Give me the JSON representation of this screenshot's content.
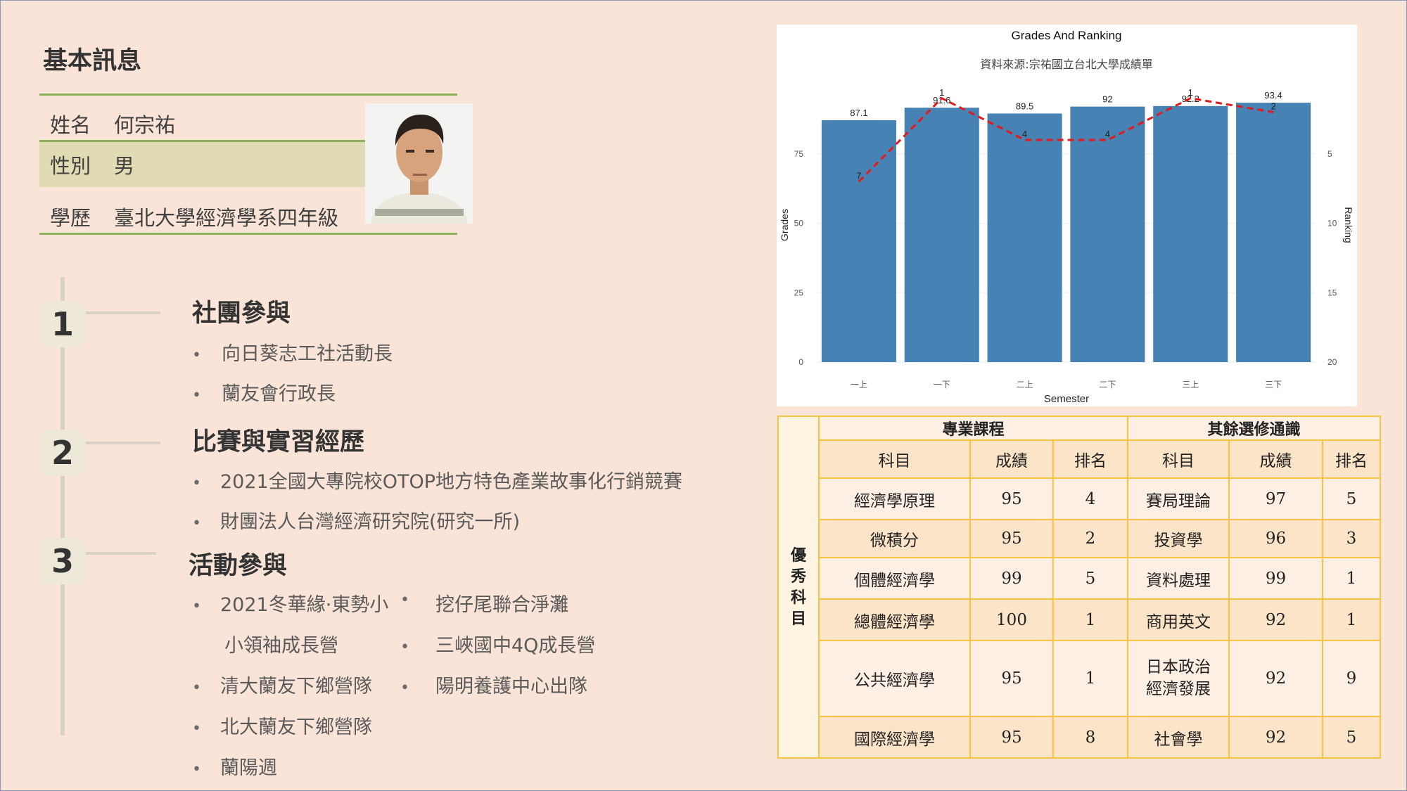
{
  "profile": {
    "section_title": "基本訊息",
    "rows": [
      {
        "label": "姓名",
        "value": "何宗祐"
      },
      {
        "label": "性別",
        "value": "男"
      },
      {
        "label": "學歷",
        "value": "臺北大學經濟學系四年級"
      }
    ]
  },
  "timeline": [
    {
      "number": "1",
      "title": "社團參與",
      "items": [
        "向日葵志工社活動長",
        "蘭友會行政長"
      ]
    },
    {
      "number": "2",
      "title": "比賽與實習經歷",
      "items": [
        "2021全國大專院校OTOP地方特色產業故事化行銷競賽",
        "財團法人台灣經濟研究院(研究一所)"
      ]
    },
    {
      "number": "3",
      "title": "活動參與",
      "left_items": [
        "2021冬華緣·東勢小",
        "小領袖成長營",
        "清大蘭友下鄉營隊",
        "北大蘭友下鄉營隊",
        "蘭陽週"
      ],
      "right_items": [
        "挖仔尾聯合淨灘",
        "三峽國中4Q成長營",
        "陽明養護中心出隊"
      ]
    }
  ],
  "chart_data": {
    "type": "bar",
    "title": "Grades And Ranking",
    "subtitle": "資料來源:宗祐國立台北大學成績單",
    "xlabel": "Semester",
    "ylabel": "Grades",
    "y2label": "Ranking",
    "categories": [
      "一上",
      "一下",
      "二上",
      "二下",
      "三上",
      "三下"
    ],
    "series": [
      {
        "values": [
          87.1,
          91.6,
          89.5,
          92,
          92.2,
          93.4
        ],
        "color": "#4682b4",
        "type": "bar"
      },
      {
        "values": [
          7,
          1,
          4,
          4,
          1,
          2
        ],
        "color": "#e31a1c",
        "type": "line",
        "axis": "right"
      }
    ],
    "ylim": [
      0,
      100
    ],
    "yticks": [
      0,
      25,
      50,
      75
    ],
    "y2lim": [
      20,
      0
    ],
    "y2ticks": [
      5,
      10,
      15,
      20
    ],
    "grid": true
  },
  "grades_table": {
    "side_label": "優秀科目",
    "group1": "專業課程",
    "group2": "其餘選修通識",
    "columns": [
      "科目",
      "成績",
      "排名",
      "科目",
      "成績",
      "排名"
    ],
    "rows": [
      [
        "經濟學原理",
        "95",
        "4",
        "賽局理論",
        "97",
        "5"
      ],
      [
        "微積分",
        "95",
        "2",
        "投資學",
        "96",
        "3"
      ],
      [
        "個體經濟學",
        "99",
        "5",
        "資料處理",
        "99",
        "1"
      ],
      [
        "總體經濟學",
        "100",
        "1",
        "商用英文",
        "92",
        "1"
      ],
      [
        "公共經濟學",
        "95",
        "1",
        "日本政治經濟發展",
        "92",
        "9"
      ],
      [
        "國際經濟學",
        "95",
        "8",
        "社會學",
        "92",
        "5"
      ]
    ]
  }
}
